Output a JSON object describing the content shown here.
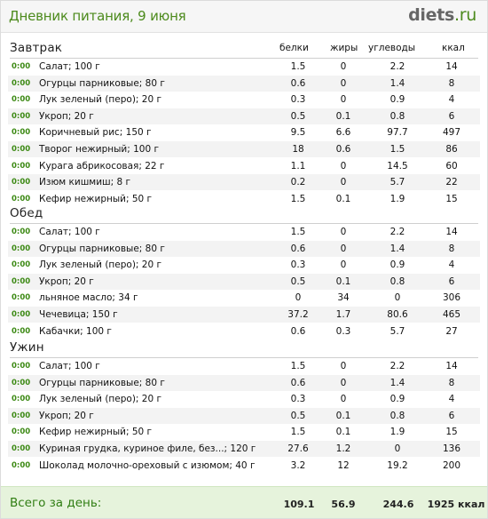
{
  "header": {
    "title": "Дневник питания, 9 июня",
    "logo_main": "diets",
    "logo_tld": ".ru"
  },
  "columns": [
    "белки",
    "жиры",
    "углеводы",
    "ккал"
  ],
  "meals": [
    {
      "title": "Завтрак",
      "items": [
        {
          "time": "0:00",
          "name": "Салат; 100 г",
          "protein": "1.5",
          "fat": "0",
          "carbs": "2.2",
          "kcal": "14"
        },
        {
          "time": "0:00",
          "name": "Огурцы парниковые; 80 г",
          "protein": "0.6",
          "fat": "0",
          "carbs": "1.4",
          "kcal": "8"
        },
        {
          "time": "0:00",
          "name": "Лук зеленый (перо); 20 г",
          "protein": "0.3",
          "fat": "0",
          "carbs": "0.9",
          "kcal": "4"
        },
        {
          "time": "0:00",
          "name": "Укроп; 20 г",
          "protein": "0.5",
          "fat": "0.1",
          "carbs": "0.8",
          "kcal": "6"
        },
        {
          "time": "0:00",
          "name": "Коричневый рис; 150 г",
          "protein": "9.5",
          "fat": "6.6",
          "carbs": "97.7",
          "kcal": "497"
        },
        {
          "time": "0:00",
          "name": "Творог нежирный; 100 г",
          "protein": "18",
          "fat": "0.6",
          "carbs": "1.5",
          "kcal": "86"
        },
        {
          "time": "0:00",
          "name": "Курага абрикосовая; 22 г",
          "protein": "1.1",
          "fat": "0",
          "carbs": "14.5",
          "kcal": "60"
        },
        {
          "time": "0:00",
          "name": "Изюм кишмиш; 8 г",
          "protein": "0.2",
          "fat": "0",
          "carbs": "5.7",
          "kcal": "22"
        },
        {
          "time": "0:00",
          "name": "Кефир нежирный; 50 г",
          "protein": "1.5",
          "fat": "0.1",
          "carbs": "1.9",
          "kcal": "15"
        }
      ]
    },
    {
      "title": "Обед",
      "items": [
        {
          "time": "0:00",
          "name": "Салат; 100 г",
          "protein": "1.5",
          "fat": "0",
          "carbs": "2.2",
          "kcal": "14"
        },
        {
          "time": "0:00",
          "name": "Огурцы парниковые; 80 г",
          "protein": "0.6",
          "fat": "0",
          "carbs": "1.4",
          "kcal": "8"
        },
        {
          "time": "0:00",
          "name": "Лук зеленый (перо); 20 г",
          "protein": "0.3",
          "fat": "0",
          "carbs": "0.9",
          "kcal": "4"
        },
        {
          "time": "0:00",
          "name": "Укроп; 20 г",
          "protein": "0.5",
          "fat": "0.1",
          "carbs": "0.8",
          "kcal": "6"
        },
        {
          "time": "0:00",
          "name": "льняное масло; 34 г",
          "protein": "0",
          "fat": "34",
          "carbs": "0",
          "kcal": "306"
        },
        {
          "time": "0:00",
          "name": "Чечевица; 150 г",
          "protein": "37.2",
          "fat": "1.7",
          "carbs": "80.6",
          "kcal": "465"
        },
        {
          "time": "0:00",
          "name": "Кабачки; 100 г",
          "protein": "0.6",
          "fat": "0.3",
          "carbs": "5.7",
          "kcal": "27"
        }
      ]
    },
    {
      "title": "Ужин",
      "items": [
        {
          "time": "0:00",
          "name": "Салат; 100 г",
          "protein": "1.5",
          "fat": "0",
          "carbs": "2.2",
          "kcal": "14"
        },
        {
          "time": "0:00",
          "name": "Огурцы парниковые; 80 г",
          "protein": "0.6",
          "fat": "0",
          "carbs": "1.4",
          "kcal": "8"
        },
        {
          "time": "0:00",
          "name": "Лук зеленый (перо); 20 г",
          "protein": "0.3",
          "fat": "0",
          "carbs": "0.9",
          "kcal": "4"
        },
        {
          "time": "0:00",
          "name": "Укроп; 20 г",
          "protein": "0.5",
          "fat": "0.1",
          "carbs": "0.8",
          "kcal": "6"
        },
        {
          "time": "0:00",
          "name": "Кефир нежирный; 50 г",
          "protein": "1.5",
          "fat": "0.1",
          "carbs": "1.9",
          "kcal": "15"
        },
        {
          "time": "0:00",
          "name": "Куриная грудка, куриное филе, без...; 120 г",
          "protein": "27.6",
          "fat": "1.2",
          "carbs": "0",
          "kcal": "136"
        },
        {
          "time": "0:00",
          "name": "Шоколад молочно-ореховый с изюмом; 40 г",
          "protein": "3.2",
          "fat": "12",
          "carbs": "19.2",
          "kcal": "200"
        }
      ]
    }
  ],
  "footer": {
    "label": "Всего за день:",
    "protein": "109.1",
    "fat": "56.9",
    "carbs": "244.6",
    "kcal": "1925 ккал"
  },
  "colors": {
    "accent_green": "#4c8a1c",
    "time_green": "#3d8a15",
    "footer_bg": "#e6f3dc",
    "row_stripe": "#f3f3f3"
  }
}
